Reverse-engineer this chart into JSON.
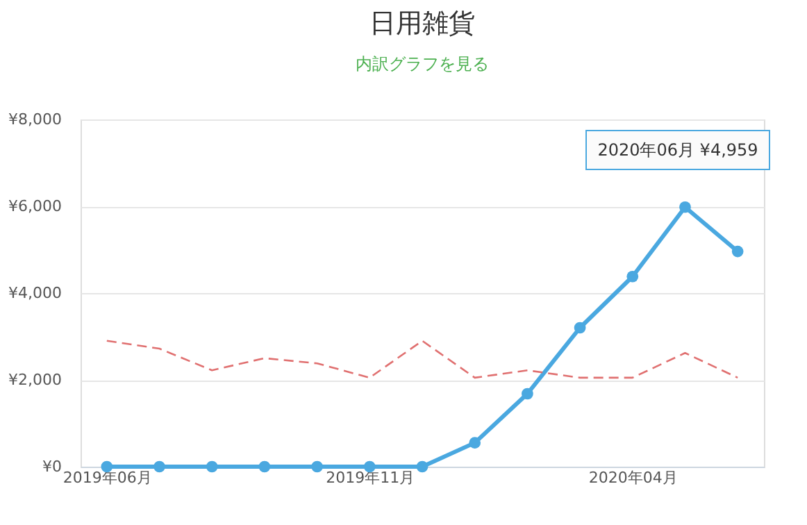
{
  "chart_data": {
    "type": "line",
    "title": "日用雑貨",
    "subtitle": "内訳グラフを見る",
    "categories": [
      "2019年06月",
      null,
      null,
      null,
      null,
      "2019年11月",
      null,
      null,
      null,
      null,
      "2020年04月",
      null,
      null
    ],
    "series": [
      {
        "color": "#4aa8e0",
        "marker": "circle",
        "line_style": "solid",
        "values": [
          0,
          0,
          0,
          0,
          0,
          0,
          0,
          550,
          1680,
          3200,
          4380,
          5980,
          4959
        ]
      },
      {
        "color": "#e07070",
        "marker": "none",
        "line_style": "dashed",
        "values": [
          2900,
          2720,
          2220,
          2500,
          2380,
          2050,
          2900,
          2050,
          2220,
          2050,
          2050,
          2620,
          2050
        ]
      }
    ],
    "ylim": [
      0,
      8000
    ],
    "yticks": [
      {
        "value": 0,
        "label": "¥0"
      },
      {
        "value": 2000,
        "label": "¥2,000"
      },
      {
        "value": 4000,
        "label": "¥4,000"
      },
      {
        "value": 6000,
        "label": "¥6,000"
      },
      {
        "value": 8000,
        "label": "¥8,000"
      }
    ],
    "grid": "y",
    "legend": false,
    "annotations": [
      "2020年06月 ¥4,959"
    ]
  }
}
